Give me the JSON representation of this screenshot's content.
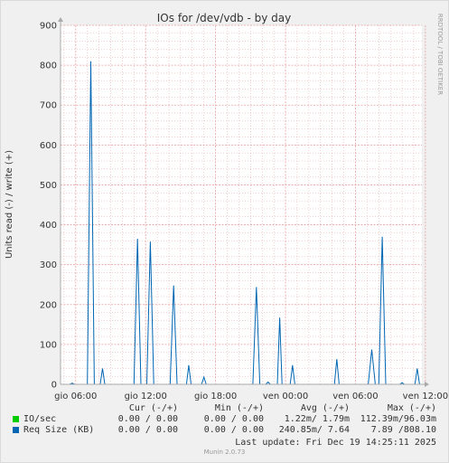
{
  "chart_data": {
    "type": "line",
    "title": "IOs for /dev/vdb - by day",
    "ylabel": "Units read (-) / write (+)",
    "xlabel": "",
    "watermark": "RRDTOOL / TOBI OETIKER",
    "ylim": [
      0,
      900
    ],
    "yticks": [
      0,
      100,
      200,
      300,
      400,
      500,
      600,
      700,
      800,
      900
    ],
    "xlim": [
      -1.3,
      29.7
    ],
    "xticks": [
      {
        "label": "gio 06:00",
        "hour": 0
      },
      {
        "label": "gio 12:00",
        "hour": 6
      },
      {
        "label": "gio 18:00",
        "hour": 12
      },
      {
        "label": "ven 00:00",
        "hour": 18
      },
      {
        "label": "ven 06:00",
        "hour": 24
      },
      {
        "label": "ven 12:00",
        "hour": 30
      }
    ],
    "grid": true,
    "colors": {
      "io": "#00CC00",
      "reqsize": "#0066B3",
      "grid": "#E8A0A0",
      "axis": "#AAAAAA"
    },
    "series": [
      {
        "name": "IO/sec",
        "points": []
      },
      {
        "name": "Req Size (KB)",
        "points": [
          [
            -0.5,
            0
          ],
          [
            -0.3,
            3
          ],
          [
            -0.1,
            0
          ],
          [
            1.0,
            0
          ],
          [
            1.3,
            810
          ],
          [
            1.6,
            0
          ],
          [
            2.1,
            0
          ],
          [
            2.3,
            40
          ],
          [
            2.5,
            0
          ],
          [
            5.0,
            0
          ],
          [
            5.3,
            365
          ],
          [
            5.6,
            0
          ],
          [
            6.1,
            0
          ],
          [
            6.4,
            358
          ],
          [
            6.7,
            0
          ],
          [
            8.1,
            0
          ],
          [
            8.4,
            248
          ],
          [
            8.7,
            0
          ],
          [
            9.5,
            0
          ],
          [
            9.7,
            48
          ],
          [
            9.9,
            0
          ],
          [
            10.8,
            0
          ],
          [
            11.0,
            18
          ],
          [
            11.2,
            0
          ],
          [
            15.2,
            0
          ],
          [
            15.5,
            244
          ],
          [
            15.8,
            0
          ],
          [
            16.3,
            0
          ],
          [
            16.5,
            6
          ],
          [
            16.7,
            0
          ],
          [
            17.3,
            0
          ],
          [
            17.5,
            167
          ],
          [
            17.7,
            0
          ],
          [
            18.4,
            0
          ],
          [
            18.6,
            48
          ],
          [
            18.8,
            0
          ],
          [
            22.2,
            0
          ],
          [
            22.4,
            63
          ],
          [
            22.6,
            0
          ],
          [
            25.1,
            0
          ],
          [
            25.4,
            87
          ],
          [
            25.7,
            0
          ],
          [
            26.0,
            0
          ],
          [
            26.3,
            370
          ],
          [
            26.6,
            0
          ],
          [
            27.8,
            0
          ],
          [
            28.0,
            4
          ],
          [
            28.2,
            0
          ],
          [
            29.1,
            0
          ],
          [
            29.3,
            40
          ],
          [
            29.5,
            0
          ]
        ]
      }
    ]
  },
  "legend": {
    "headers": {
      "cur": "Cur (-/+)",
      "min": "Min (-/+)",
      "avg": "Avg (-/+)",
      "max": "Max (-/+)"
    },
    "rows": [
      {
        "name": "IO/sec",
        "color": "#00CC00",
        "cur": "0.00 / 0.00",
        "min": "0.00 / 0.00",
        "avg": "1.22m/ 1.79m",
        "max": "112.39m/96.03m"
      },
      {
        "name": "Req Size (KB)",
        "color": "#0066B3",
        "cur": "0.00 / 0.00",
        "min": "0.00 / 0.00",
        "avg": "240.85m/ 7.64",
        "max": "7.89 /808.10"
      }
    ]
  },
  "last_update": "Last update: Fri Dec 19 14:25:11 2025",
  "footer": "Munin 2.0.73"
}
